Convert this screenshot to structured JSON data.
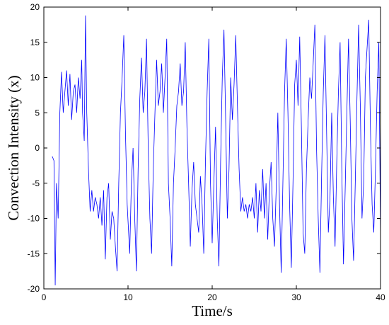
{
  "chart_data": {
    "type": "line",
    "x_label": "Time/s",
    "y_label": "Convection Intensity (x)",
    "xlim": [
      0,
      40
    ],
    "ylim": [
      -20,
      20
    ],
    "xticks": [
      0,
      10,
      20,
      30,
      40
    ],
    "yticks": [
      -20,
      -15,
      -10,
      -5,
      0,
      5,
      10,
      15,
      20
    ],
    "grid": false,
    "series": [
      {
        "color": "#0000ff",
        "x": [
          1.0,
          1.2,
          1.35,
          1.5,
          1.7,
          1.9,
          2.1,
          2.3,
          2.5,
          2.7,
          2.9,
          3.1,
          3.3,
          3.5,
          3.7,
          3.9,
          4.1,
          4.3,
          4.5,
          4.6,
          4.8,
          4.95,
          5.1,
          5.3,
          5.5,
          5.7,
          5.9,
          6.1,
          6.3,
          6.5,
          6.7,
          6.9,
          7.1,
          7.3,
          7.5,
          7.7,
          7.9,
          8.1,
          8.3,
          8.5,
          8.7,
          8.9,
          9.1,
          9.3,
          9.5,
          9.7,
          9.9,
          10.2,
          10.4,
          10.6,
          10.8,
          11,
          11.2,
          11.4,
          11.6,
          11.8,
          12,
          12.2,
          12.4,
          12.6,
          12.8,
          13,
          13.2,
          13.4,
          13.6,
          13.8,
          14,
          14.2,
          14.4,
          14.6,
          14.8,
          15,
          15.2,
          15.4,
          15.6,
          15.8,
          16,
          16.2,
          16.4,
          16.6,
          16.8,
          17,
          17.2,
          17.4,
          17.6,
          17.8,
          18,
          18.2,
          18.4,
          18.6,
          18.8,
          19,
          19.2,
          19.4,
          19.6,
          19.8,
          20,
          20.2,
          20.4,
          20.6,
          20.8,
          21,
          21.2,
          21.4,
          21.6,
          21.8,
          22,
          22.2,
          22.4,
          22.6,
          22.8,
          23,
          23.2,
          23.4,
          23.6,
          23.8,
          24,
          24.2,
          24.4,
          24.6,
          24.8,
          25,
          25.2,
          25.4,
          25.6,
          25.8,
          26,
          26.2,
          26.4,
          26.6,
          26.8,
          27,
          27.2,
          27.4,
          27.6,
          27.8,
          28,
          28.2,
          28.4,
          28.6,
          28.8,
          29,
          29.2,
          29.4,
          29.6,
          29.8,
          30,
          30.2,
          30.4,
          30.6,
          30.8,
          31,
          31.2,
          31.4,
          31.6,
          31.8,
          32,
          32.2,
          32.4,
          32.6,
          32.8,
          33,
          33.2,
          33.4,
          33.6,
          33.8,
          34,
          34.2,
          34.4,
          34.6,
          34.8,
          35,
          35.2,
          35.4,
          35.6,
          35.8,
          36,
          36.2,
          36.4,
          36.6,
          36.8,
          37,
          37.2,
          37.4,
          37.6,
          37.8,
          38,
          38.2,
          38.6,
          38.8,
          39,
          39.2,
          39.4,
          39.6,
          39.8,
          40
        ],
        "values": [
          -1.2,
          -1.8,
          -19.5,
          -5,
          -10,
          5,
          10.8,
          5,
          8,
          11,
          6,
          10.5,
          4,
          8,
          9,
          5,
          10,
          7,
          12.5,
          5,
          1,
          18.8,
          5,
          -3,
          -9,
          -6,
          -9,
          -7,
          -8,
          -10,
          -7,
          -11,
          -6,
          -15.8,
          -7,
          -5,
          -13,
          -9,
          -10,
          -14,
          -17.5,
          -5,
          5,
          10,
          16,
          2,
          -8,
          -15,
          -5,
          0,
          -10,
          -17.5,
          -3,
          7,
          12.8,
          5,
          8,
          15.5,
          0,
          -10,
          -15,
          -3,
          5,
          12.5,
          6,
          8,
          12,
          5,
          10,
          15.5,
          -5,
          -10,
          -16.8,
          -5,
          0,
          6,
          8,
          12,
          6,
          8,
          15,
          3,
          -5,
          -14,
          -6,
          -2,
          -8,
          -10,
          -12,
          -4,
          -8,
          -15,
          -2,
          8,
          15.5,
          -5,
          -13.5,
          -5,
          3,
          -10,
          -16.8,
          -2,
          10,
          16.8,
          4,
          -10,
          -3,
          10,
          4,
          9,
          16,
          6,
          -3,
          -9,
          -7,
          -9,
          -8,
          -10,
          -8,
          -9,
          -7,
          -10,
          -5,
          -12,
          -6,
          -9,
          -3,
          -10,
          -5,
          -13,
          -6,
          -2,
          -10,
          -14,
          -6,
          5,
          -8,
          -17.7,
          -5,
          8,
          15.5,
          5,
          -8,
          -17,
          -5,
          9,
          12.5,
          6,
          15.8,
          3,
          -12,
          -15,
          -3,
          4,
          10,
          7,
          12,
          17.5,
          0,
          -10,
          -17.7,
          -4,
          8,
          16,
          2,
          -12,
          -7,
          5,
          -7,
          -14,
          -2,
          8,
          15,
          -3,
          -16.5,
          -6,
          5,
          15.5,
          4,
          -10,
          -16,
          -5,
          7,
          17.5,
          6,
          -10,
          -5,
          10,
          18.2,
          3,
          -8,
          -12,
          -3,
          8,
          15,
          -13
        ]
      }
    ]
  }
}
